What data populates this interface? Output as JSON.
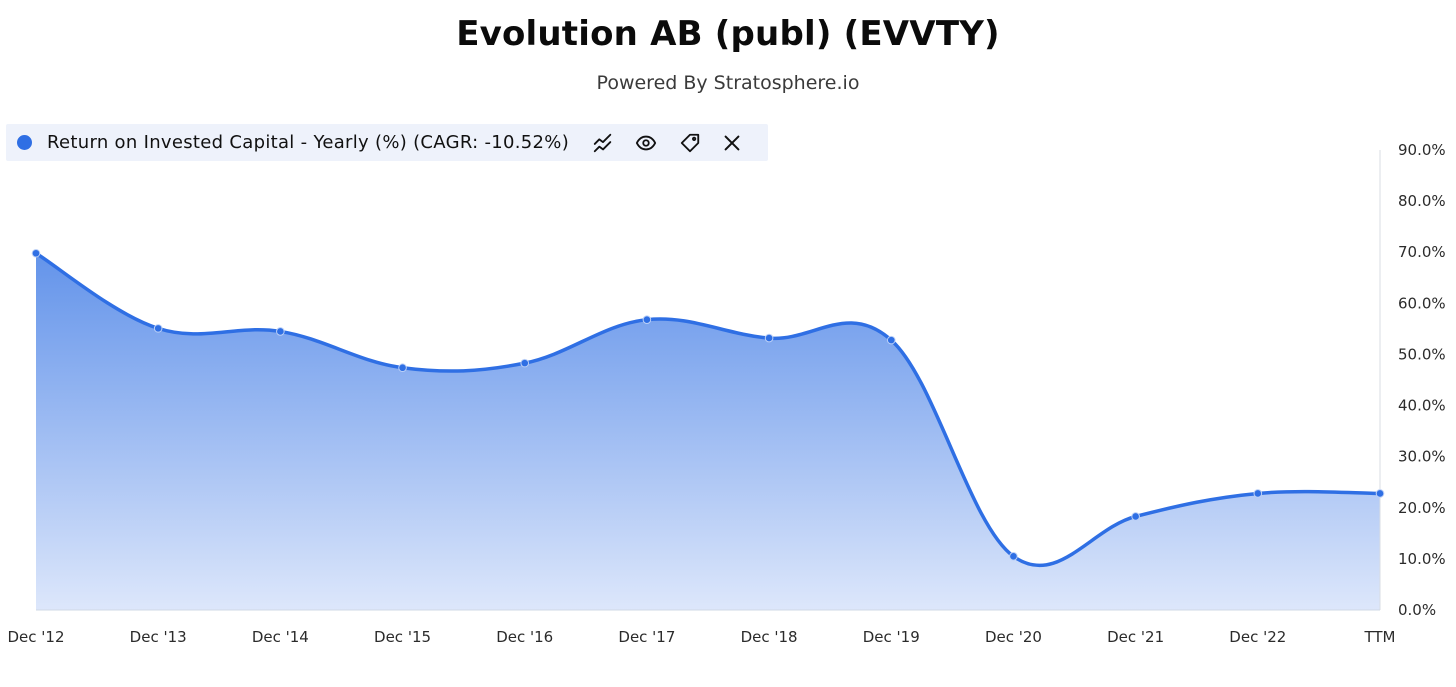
{
  "header": {
    "title": "Evolution AB (publ) (EVVTY)",
    "subtitle": "Powered By Stratosphere.io"
  },
  "legend": {
    "label": "Return on Invested Capital - Yearly (%) (CAGR: -10.52%)",
    "icons": [
      "trend-lines-icon",
      "eye-icon",
      "tag-icon",
      "close-icon"
    ]
  },
  "colors": {
    "series": "#2f6fe4",
    "fill_top": "#5b8ee9",
    "fill_bottom": "#dde7fb",
    "legend_bg": "#eef2fb"
  },
  "chart_data": {
    "type": "area",
    "categories": [
      "Dec '12",
      "Dec '13",
      "Dec '14",
      "Dec '15",
      "Dec '16",
      "Dec '17",
      "Dec '18",
      "Dec '19",
      "Dec '20",
      "Dec '21",
      "Dec '22",
      "TTM"
    ],
    "series": [
      {
        "name": "Return on Invested Capital - Yearly (%)",
        "values": [
          69.8,
          55.1,
          54.5,
          47.4,
          48.3,
          56.8,
          53.2,
          52.8,
          10.5,
          18.3,
          22.8,
          22.8
        ]
      }
    ],
    "ylim": [
      0,
      90
    ],
    "yticks": [
      "0.0%",
      "10.0%",
      "20.0%",
      "30.0%",
      "40.0%",
      "50.0%",
      "60.0%",
      "70.0%",
      "80.0%",
      "90.0%"
    ],
    "y_axis_position": "right",
    "grid": false,
    "legend_position": "top-left"
  }
}
